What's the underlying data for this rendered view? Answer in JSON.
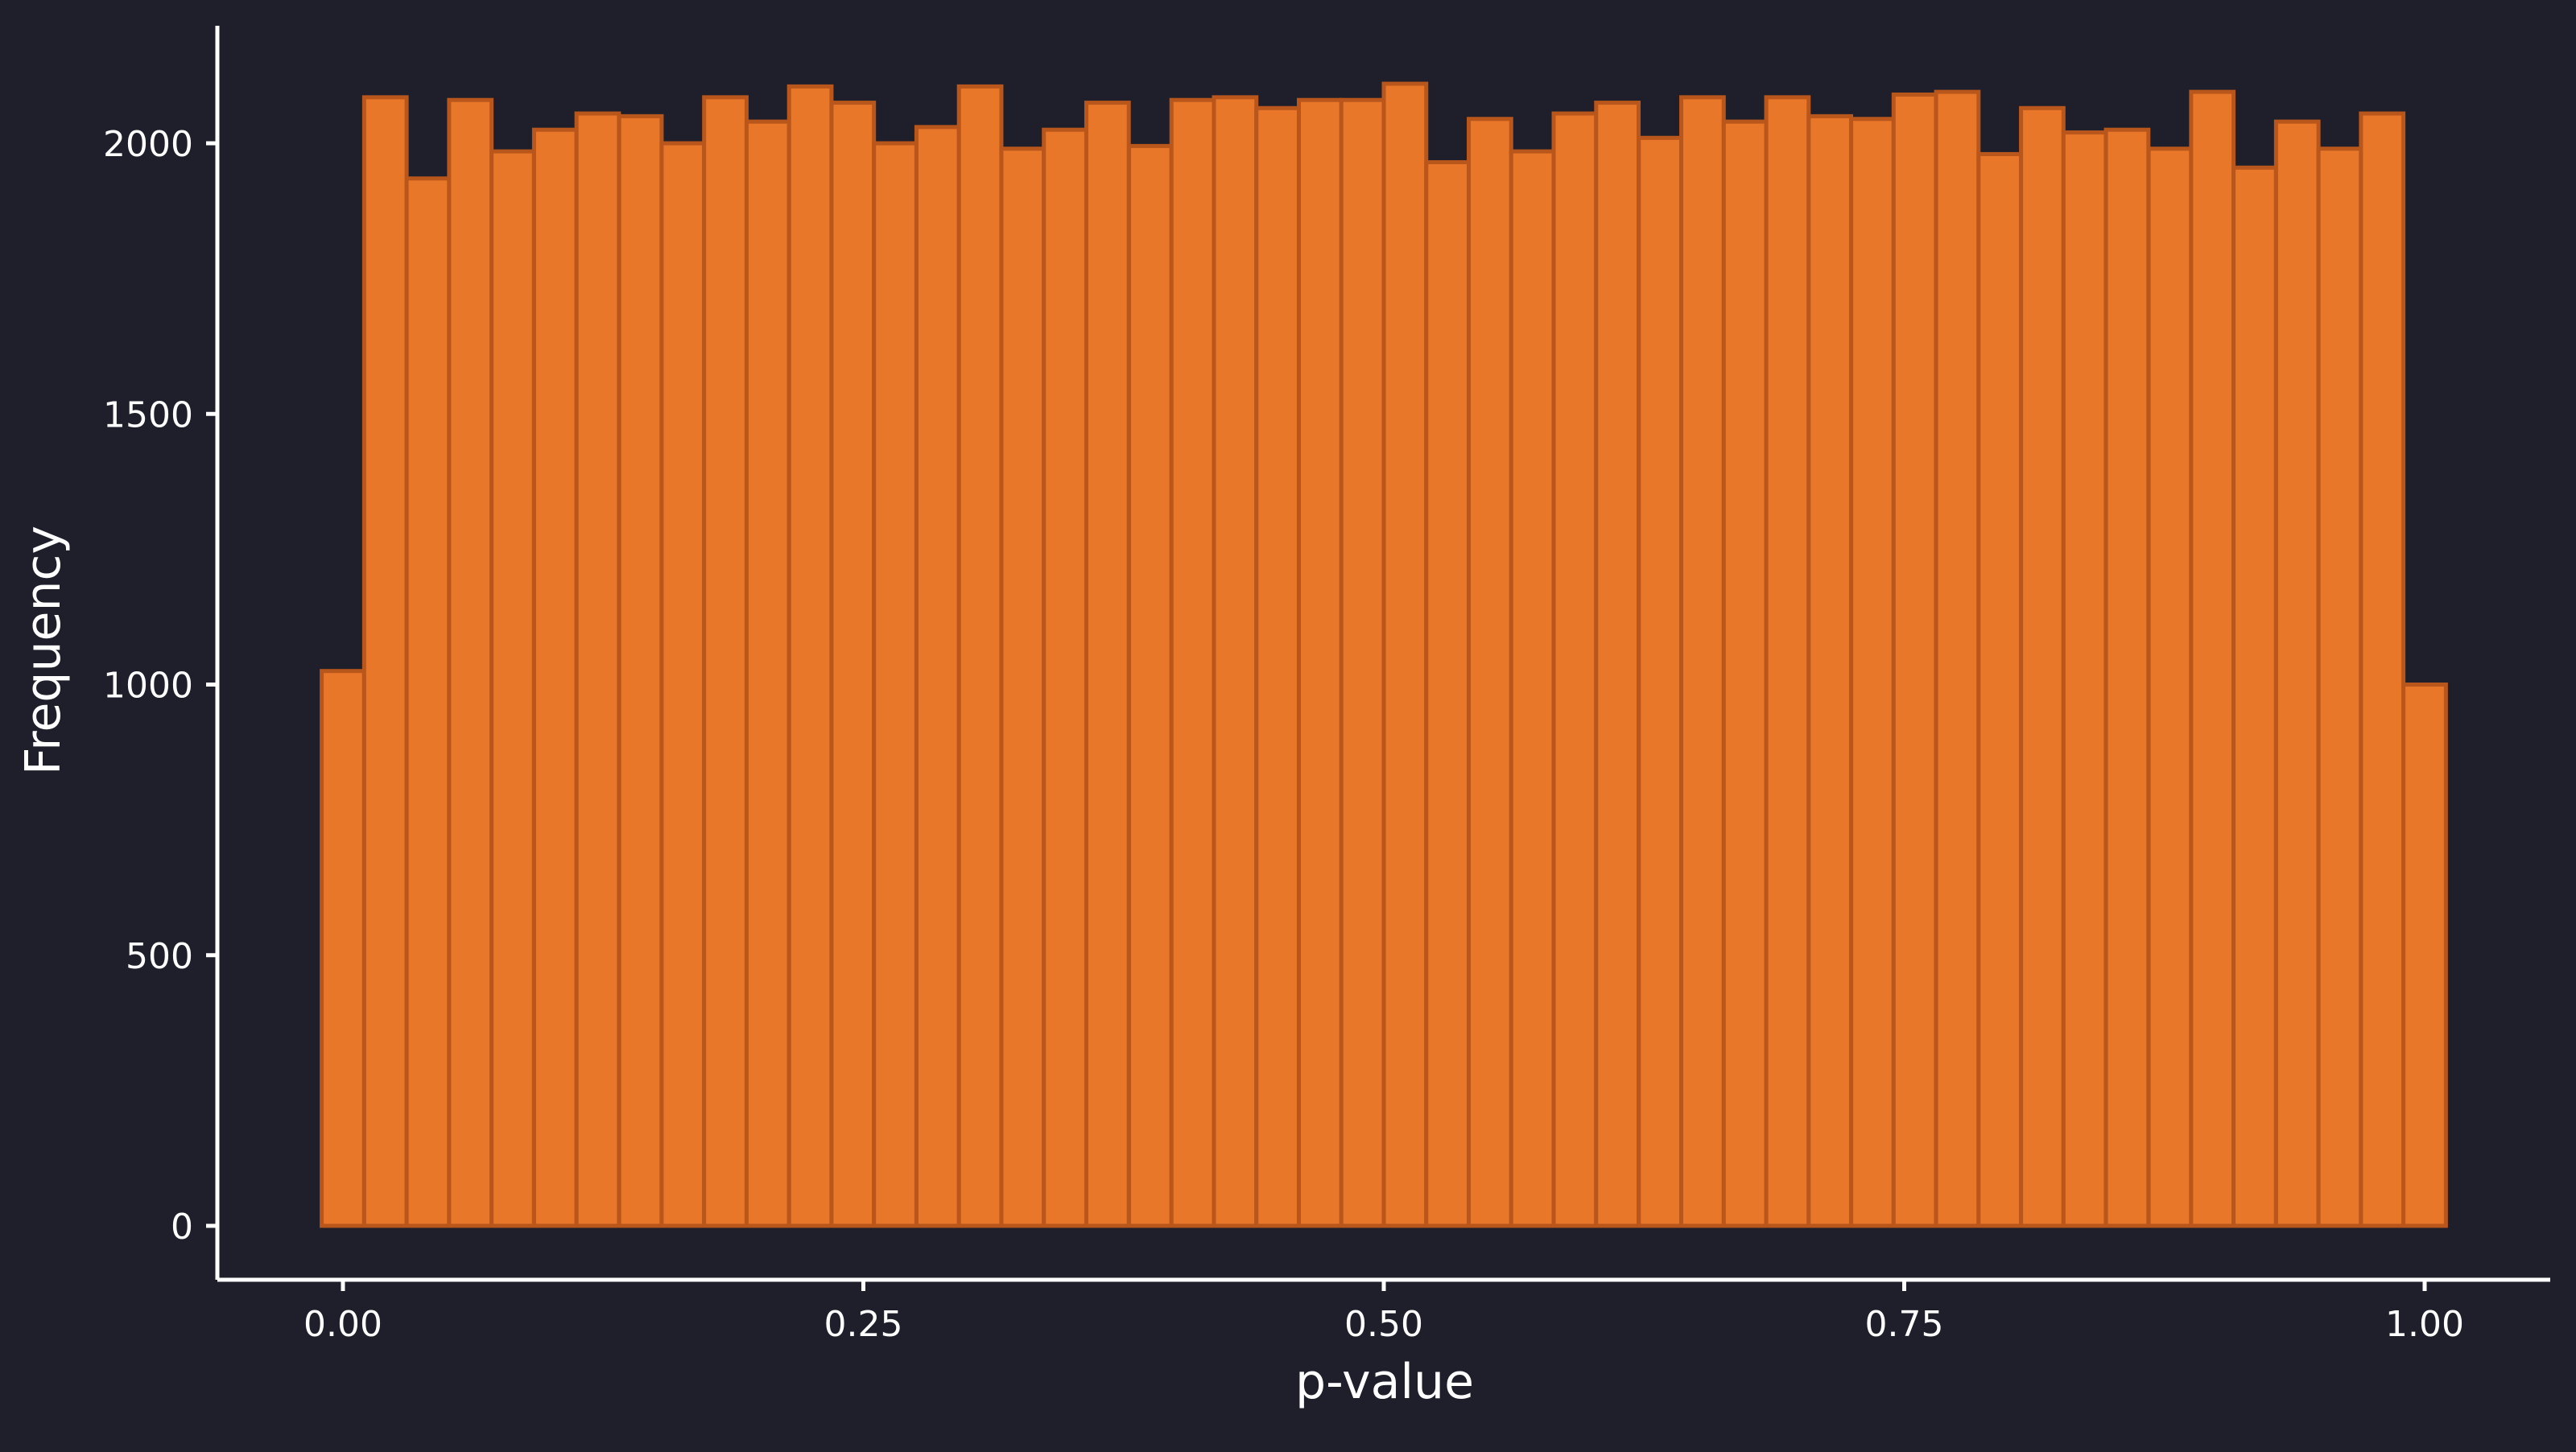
{
  "chart_data": {
    "type": "bar",
    "subtype": "histogram",
    "title": "",
    "xlabel": "p-value",
    "ylabel": "Frequency",
    "xlim": [
      -0.05,
      1.05
    ],
    "ylim": [
      -100,
      2220
    ],
    "x_ticks": [
      {
        "value": 0.0,
        "label": "0.00"
      },
      {
        "value": 0.25,
        "label": "0.25"
      },
      {
        "value": 0.5,
        "label": "0.50"
      },
      {
        "value": 0.75,
        "label": "0.75"
      },
      {
        "value": 1.0,
        "label": "1.00"
      }
    ],
    "y_ticks": [
      {
        "value": 0,
        "label": "0"
      },
      {
        "value": 500,
        "label": "500"
      },
      {
        "value": 1000,
        "label": "1000"
      },
      {
        "value": 1500,
        "label": "1500"
      },
      {
        "value": 2000,
        "label": "2000"
      }
    ],
    "bin_width": 0.0204,
    "bin_centers": [
      0.0,
      0.0204,
      0.0408,
      0.0612,
      0.0816,
      0.102,
      0.1224,
      0.1429,
      0.1633,
      0.1837,
      0.2041,
      0.2245,
      0.2449,
      0.2653,
      0.2857,
      0.3061,
      0.3265,
      0.3469,
      0.3673,
      0.3878,
      0.4082,
      0.4286,
      0.449,
      0.4694,
      0.4898,
      0.5102,
      0.5306,
      0.551,
      0.5714,
      0.5918,
      0.6122,
      0.6327,
      0.6531,
      0.6735,
      0.6939,
      0.7143,
      0.7347,
      0.7551,
      0.7755,
      0.7959,
      0.8163,
      0.8367,
      0.8571,
      0.8776,
      0.898,
      0.9184,
      0.9388,
      0.9592,
      0.9796,
      1.0
    ],
    "values": [
      1025,
      2085,
      1935,
      2080,
      1985,
      2025,
      2055,
      2050,
      2000,
      2085,
      2040,
      2105,
      2075,
      2000,
      2030,
      2105,
      1990,
      2025,
      2075,
      1995,
      2080,
      2085,
      2065,
      2080,
      2080,
      2110,
      1965,
      2045,
      1985,
      2055,
      2075,
      2010,
      2085,
      2040,
      2085,
      2050,
      2045,
      2090,
      2095,
      1980,
      2065,
      2020,
      2025,
      1990,
      2095,
      1955,
      2040,
      1990,
      2055,
      1000
    ],
    "grid": false,
    "legend": "none",
    "colors": {
      "background": "#1e1f2b",
      "bar_fill": "#e8772a",
      "bar_edge": "#b8561b",
      "axis": "#ffffff"
    }
  }
}
